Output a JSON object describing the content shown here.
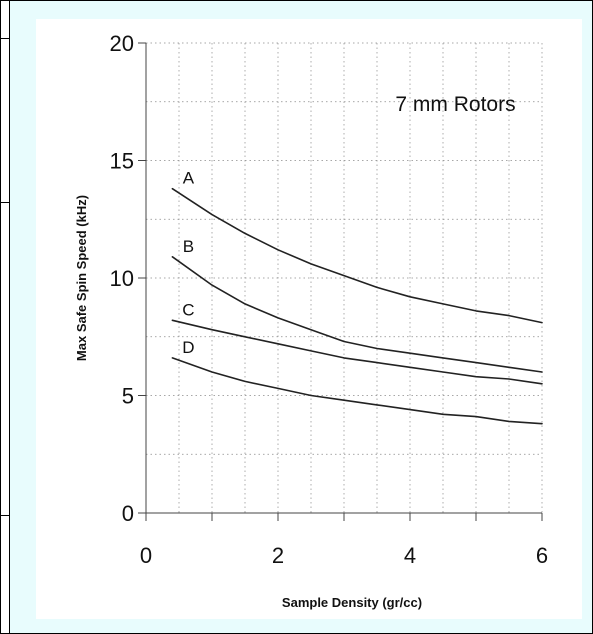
{
  "chart_data": {
    "type": "line",
    "title": "7 mm Rotors",
    "xlabel": "Sample Density (gr/cc)",
    "ylabel": "Max Safe Spin Speed (kHz)",
    "xlim": [
      0,
      6
    ],
    "ylim": [
      0,
      20
    ],
    "x_ticks": [
      "0",
      "2",
      "4",
      "6"
    ],
    "y_ticks": [
      "0",
      "5",
      "10",
      "15",
      "20"
    ],
    "grid": true,
    "series": [
      {
        "name": "A",
        "x": [
          0.4,
          1,
          1.5,
          2,
          2.5,
          3,
          3.5,
          4,
          4.5,
          5,
          5.5,
          6
        ],
        "y": [
          13.8,
          12.7,
          11.9,
          11.2,
          10.6,
          10.1,
          9.6,
          9.2,
          8.9,
          8.6,
          8.4,
          8.1
        ],
        "color": "#222222"
      },
      {
        "name": "B",
        "x": [
          0.4,
          1,
          1.5,
          2,
          2.5,
          3,
          3.5,
          4,
          4.5,
          5,
          5.5,
          6
        ],
        "y": [
          10.9,
          9.7,
          8.9,
          8.3,
          7.8,
          7.3,
          7.0,
          6.8,
          6.6,
          6.4,
          6.2,
          6.0
        ],
        "color": "#222222"
      },
      {
        "name": "C",
        "x": [
          0.4,
          1,
          1.5,
          2,
          2.5,
          3,
          3.5,
          4,
          4.5,
          5,
          5.5,
          6
        ],
        "y": [
          8.2,
          7.8,
          7.5,
          7.2,
          6.9,
          6.6,
          6.4,
          6.2,
          6.0,
          5.8,
          5.7,
          5.5
        ],
        "color": "#222222"
      },
      {
        "name": "D",
        "x": [
          0.4,
          1,
          1.5,
          2,
          2.5,
          3,
          3.5,
          4,
          4.5,
          5,
          5.5,
          6
        ],
        "y": [
          6.6,
          6.0,
          5.6,
          5.3,
          5.0,
          4.8,
          4.6,
          4.4,
          4.2,
          4.1,
          3.9,
          3.8
        ],
        "color": "#222222"
      }
    ]
  }
}
